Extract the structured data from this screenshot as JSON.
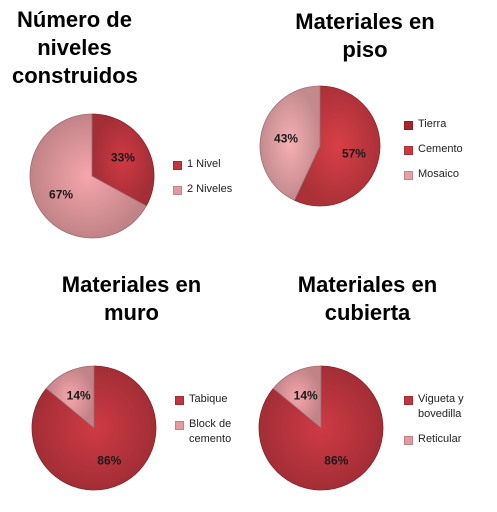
{
  "chart_data": [
    {
      "type": "pie",
      "title": "Número de niveles construidos",
      "title_lines": [
        "Número de",
        "niveles",
        "construidos"
      ],
      "categories": [
        "1 Nivel",
        "2 Niveles"
      ],
      "values": [
        33,
        67
      ],
      "value_labels": [
        "33%",
        "67%"
      ],
      "colors": [
        "#c0363f",
        "#e39a9f"
      ],
      "legend_position": "right"
    },
    {
      "type": "pie",
      "title": "Materiales en piso",
      "title_lines": [
        "Materiales en piso"
      ],
      "categories": [
        "Tierra",
        "Cemento",
        "Mosaico"
      ],
      "values": [
        0,
        57,
        43
      ],
      "value_labels": [
        "",
        "57%",
        "43%"
      ],
      "colors": [
        "#a8242c",
        "#c93a42",
        "#e4a2a6"
      ],
      "legend_position": "right"
    },
    {
      "type": "pie",
      "title": "Materiales en muro",
      "title_lines": [
        "Materiales en",
        "muro"
      ],
      "categories": [
        "Tabique",
        "Block de cemento"
      ],
      "legend_lines": [
        "Tabique",
        "Block de\ncemento"
      ],
      "values": [
        86,
        14
      ],
      "value_labels": [
        "86%",
        "14%"
      ],
      "colors": [
        "#c0363f",
        "#e39a9f"
      ],
      "legend_position": "right"
    },
    {
      "type": "pie",
      "title": "Materiales en cubierta",
      "title_lines": [
        "Materiales en",
        "cubierta"
      ],
      "categories": [
        "Vigueta y bovedilla",
        "Reticular"
      ],
      "legend_lines": [
        "Vigueta y\nbovedilla",
        "Reticular"
      ],
      "values": [
        86,
        14
      ],
      "value_labels": [
        "86%",
        "14%"
      ],
      "colors": [
        "#c0363f",
        "#e39a9f"
      ],
      "legend_position": "right"
    }
  ]
}
